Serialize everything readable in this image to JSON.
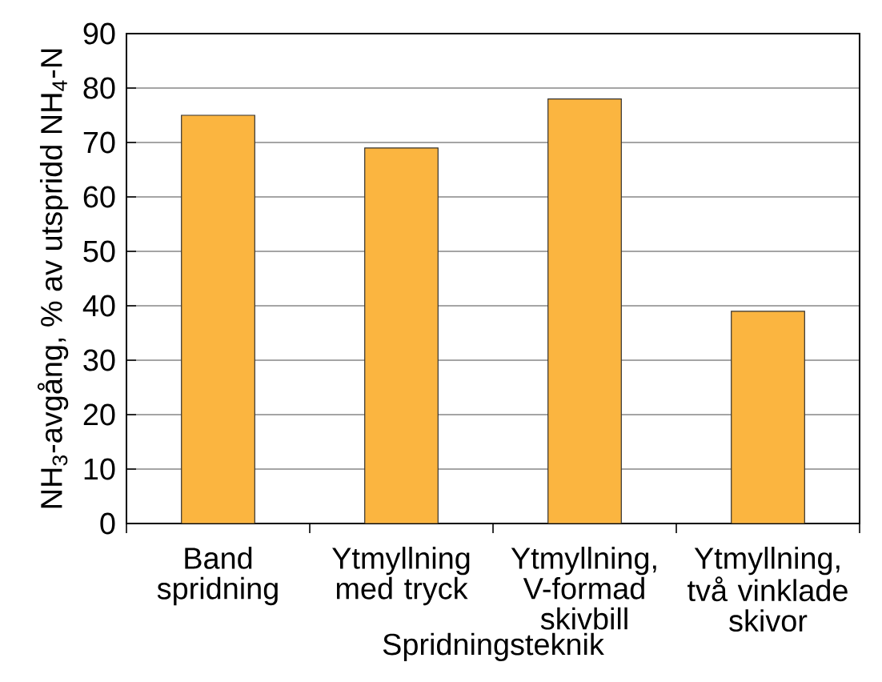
{
  "chart_data": {
    "type": "bar",
    "xlabel": "Spridningsteknik",
    "ylabel": "NH$_{3}$-avgång, % av utspridd NH$_{4}$-N",
    "categories": [
      "Band spridning",
      "Ytmyllning med tryck",
      "Ytmyllning, V-formad skivbill",
      "Ytmyllning, två vinklade skivor"
    ],
    "values": [
      75,
      69,
      78,
      39
    ],
    "color": "#fbb540",
    "ylim": [
      0,
      90
    ],
    "yticks": [
      0,
      10,
      20,
      30,
      40,
      50,
      60,
      70,
      80,
      90
    ],
    "grid": "y"
  }
}
